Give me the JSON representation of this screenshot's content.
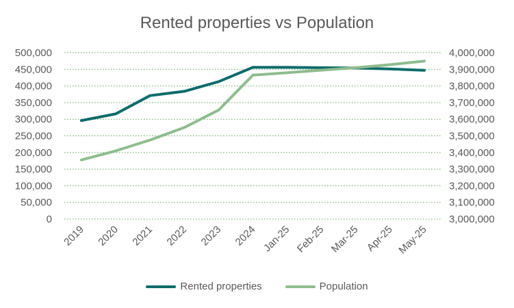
{
  "chart_data": {
    "type": "line",
    "title": "Rented properties vs Population",
    "categories": [
      "2019",
      "2020",
      "2021",
      "2022",
      "2023",
      "2024",
      "Jan-25",
      "Feb-25",
      "Mar-25",
      "Apr-25",
      "May-25"
    ],
    "y_left": {
      "lim": [
        0,
        500000
      ],
      "ticks": [
        0,
        50000,
        100000,
        150000,
        200000,
        250000,
        300000,
        350000,
        400000,
        450000,
        500000
      ],
      "tick_labels": [
        "0",
        "50,000",
        "100,000",
        "150,000",
        "200,000",
        "250,000",
        "300,000",
        "350,000",
        "400,000",
        "450,000",
        "500,000"
      ]
    },
    "y_right": {
      "lim": [
        3000000,
        4000000
      ],
      "ticks": [
        3000000,
        3100000,
        3200000,
        3300000,
        3400000,
        3500000,
        3600000,
        3700000,
        3800000,
        3900000,
        4000000
      ],
      "tick_labels": [
        "3,000,000",
        "3,100,000",
        "3,200,000",
        "3,300,000",
        "3,400,000",
        "3,500,000",
        "3,600,000",
        "3,700,000",
        "3,800,000",
        "3,900,000",
        "4,000,000"
      ]
    },
    "series": [
      {
        "name": "Rented properties",
        "axis": "left",
        "color": "#0e6b6b",
        "values": [
          296000,
          316000,
          371000,
          384000,
          413000,
          456000,
          456000,
          455000,
          454000,
          451000,
          447000
        ]
      },
      {
        "name": "Population",
        "axis": "right",
        "color": "#8fbc8f",
        "values": [
          3355000,
          3410000,
          3475000,
          3550000,
          3655000,
          3865000,
          3880000,
          3895000,
          3910000,
          3928000,
          3950000
        ]
      }
    ],
    "grid": true,
    "grid_style": "dotted",
    "grid_color": "#5aa55a",
    "legend_position": "bottom"
  }
}
